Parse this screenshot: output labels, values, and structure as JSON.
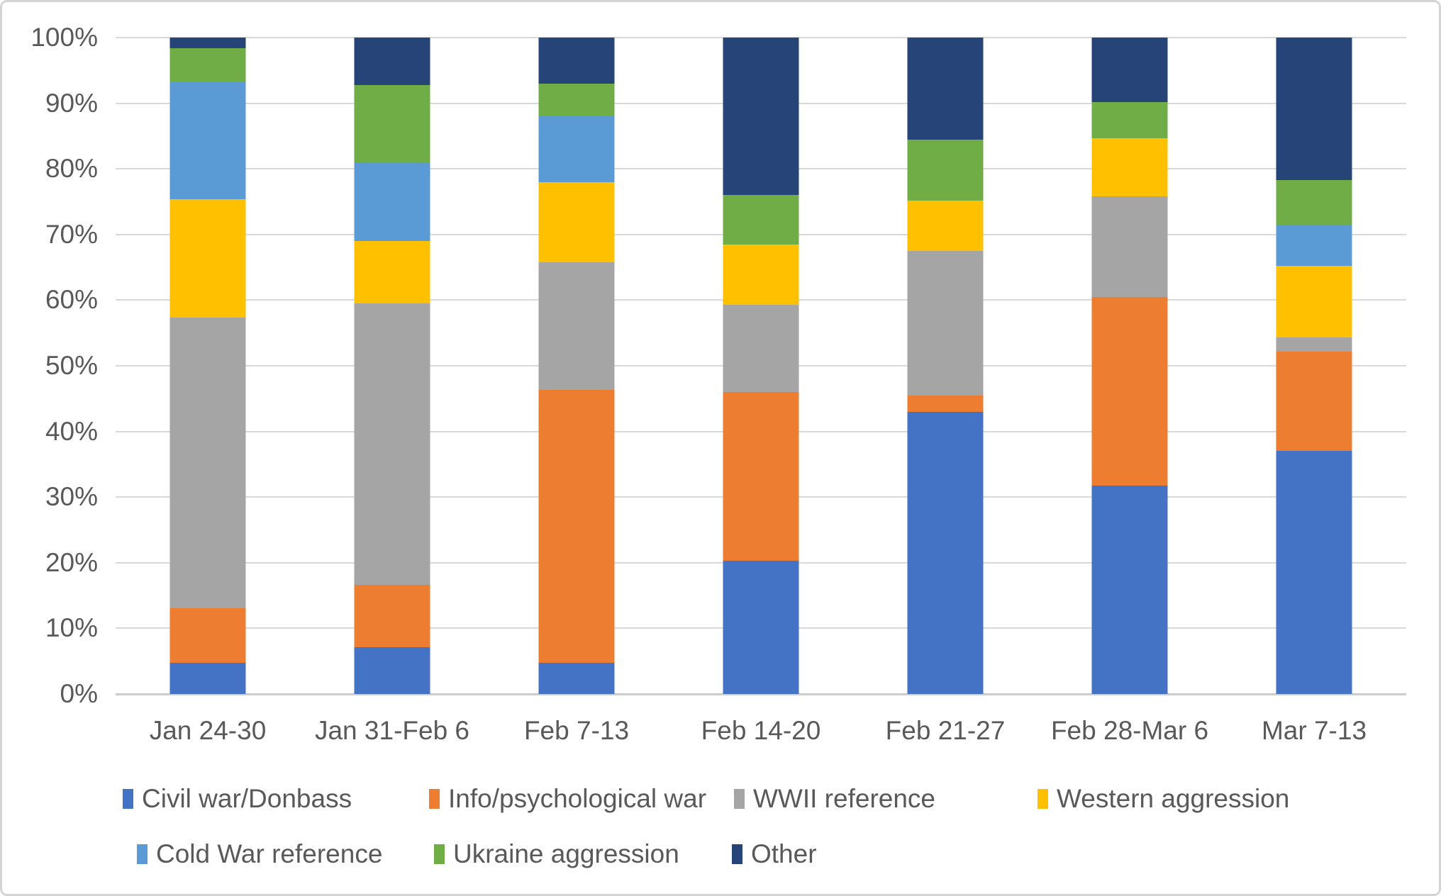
{
  "chart_data": {
    "type": "bar",
    "variant": "stacked-100-percent-column",
    "title": "",
    "xlabel": "",
    "ylabel": "",
    "units": "percent",
    "categories": [
      "Jan 24-30",
      "Jan 31-Feb 6",
      "Feb 7-13",
      "Feb 14-20",
      "Feb 21-27",
      "Feb 28-Mar 6",
      "Mar 7-13"
    ],
    "series": [
      {
        "name": "Civil war/Donbass",
        "color": "#4472C4",
        "values": [
          4.8,
          7.1,
          4.8,
          20.3,
          43.0,
          31.8,
          37.0
        ]
      },
      {
        "name": "Info/psychological war",
        "color": "#ED7D31",
        "values": [
          8.3,
          9.5,
          41.5,
          25.7,
          2.5,
          28.7,
          15.2
        ]
      },
      {
        "name": "WWII reference",
        "color": "#A5A5A5",
        "values": [
          44.2,
          42.9,
          19.5,
          13.3,
          22.0,
          15.3,
          2.1
        ]
      },
      {
        "name": "Western aggression",
        "color": "#FFC000",
        "values": [
          18.1,
          9.5,
          12.2,
          9.2,
          7.7,
          8.9,
          10.9
        ]
      },
      {
        "name": "Cold War reference",
        "color": "#5B9BD5",
        "values": [
          17.9,
          12.0,
          10.0,
          0.0,
          0.0,
          0.0,
          6.3
        ]
      },
      {
        "name": "Ukraine aggression",
        "color": "#70AD47",
        "values": [
          5.1,
          11.8,
          5.0,
          7.5,
          9.3,
          5.5,
          6.8
        ]
      },
      {
        "name": "Other",
        "color": "#264478",
        "values": [
          1.6,
          7.2,
          7.0,
          24.0,
          15.5,
          9.8,
          21.7
        ]
      }
    ],
    "ylim": [
      0,
      100
    ],
    "y_tick_step": 10,
    "y_tick_labels": [
      "0%",
      "10%",
      "20%",
      "30%",
      "40%",
      "50%",
      "60%",
      "70%",
      "80%",
      "90%",
      "100%"
    ],
    "grid": true,
    "legend_position": "bottom",
    "legend_rows": [
      [
        "Civil war/Donbass",
        "Info/psychological war",
        "WWII reference",
        "Western aggression"
      ],
      [
        "Cold War reference",
        "Ukraine aggression",
        "Other"
      ]
    ]
  },
  "styles": {
    "text_color": "#595959",
    "gridline_color": "#D9D9D9",
    "axis_line_color": "#CDCDCD",
    "frame_border_color": "#D4D4D4",
    "background": "#FFFFFF"
  }
}
